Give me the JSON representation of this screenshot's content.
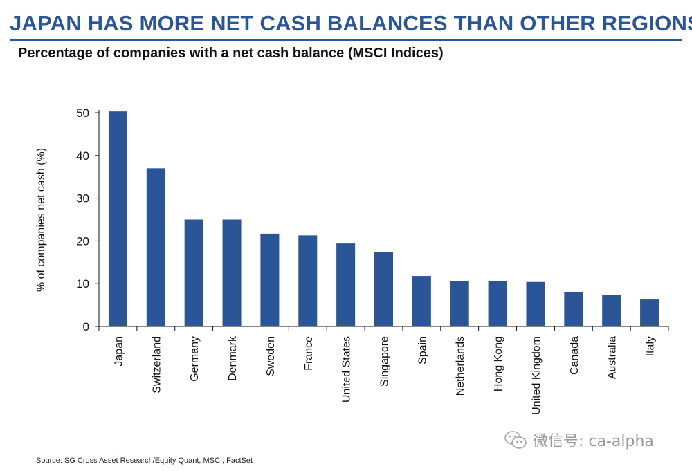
{
  "header": {
    "headline": "JAPAN HAS MORE NET CASH BALANCES THAN OTHER REGIONS",
    "subtitle": "Percentage of companies with a net cash balance (MSCI Indices)"
  },
  "chart_data": {
    "type": "bar",
    "title": "Percentage of companies with a net cash balance (MSCI Indices)",
    "xlabel": "",
    "ylabel": "% of companies net cash (%)",
    "ylim": [
      0,
      50
    ],
    "yticks": [
      0,
      10,
      20,
      30,
      40,
      50
    ],
    "grid": false,
    "legend": "none",
    "bar_color": "#2a5597",
    "categories": [
      "Japan",
      "Switzerland",
      "Germany",
      "Denmark",
      "Sweden",
      "France",
      "United States",
      "Singapore",
      "Spain",
      "Netherlands",
      "Hong Kong",
      "United Kingdom",
      "Canada",
      "Australia",
      "Italy"
    ],
    "values": [
      50.3,
      37.0,
      25.0,
      25.0,
      21.7,
      21.3,
      19.4,
      17.4,
      11.8,
      10.6,
      10.6,
      10.4,
      8.1,
      7.3,
      6.3
    ]
  },
  "footer": {
    "source": "Source: SG Cross Asset Research/Equity Quant, MSCI, FactSet"
  },
  "watermark": {
    "text": "微信号: ca-alpha",
    "icon": "wechat-icon"
  }
}
